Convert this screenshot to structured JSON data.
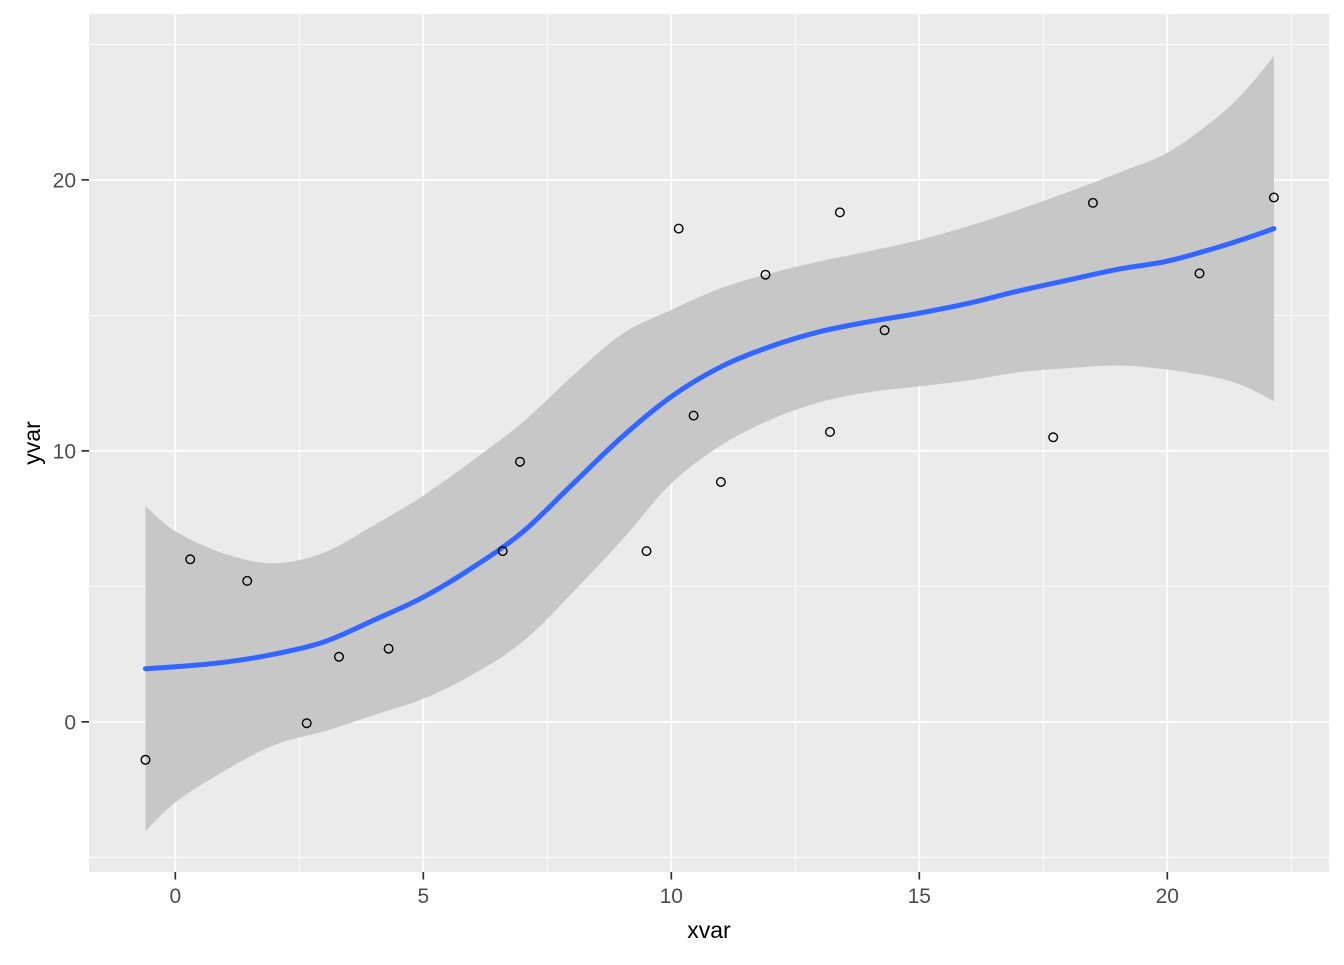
{
  "chart_data": {
    "type": "scatter",
    "title": "",
    "xlabel": "xvar",
    "ylabel": "yvar",
    "xlim": [
      -1.74,
      23.26
    ],
    "ylim": [
      -5.54,
      26.12
    ],
    "x_ticks": [
      0,
      5,
      10,
      15,
      20
    ],
    "y_ticks": [
      0,
      10,
      20
    ],
    "x_minor_ticks": [
      2.5,
      7.5,
      12.5,
      17.5,
      22.5
    ],
    "y_minor_ticks": [
      -5,
      5,
      15,
      25
    ],
    "grid": "white major and minor gridlines on gray panel",
    "legend": "none",
    "points": [
      [
        -0.6,
        -1.4
      ],
      [
        0.3,
        6.0
      ],
      [
        1.45,
        5.2
      ],
      [
        2.65,
        -0.05
      ],
      [
        3.3,
        2.4
      ],
      [
        4.3,
        2.7
      ],
      [
        6.6,
        6.3
      ],
      [
        6.95,
        9.6
      ],
      [
        9.5,
        6.3
      ],
      [
        10.15,
        18.2
      ],
      [
        10.45,
        11.3
      ],
      [
        11.0,
        8.85
      ],
      [
        11.9,
        16.5
      ],
      [
        13.2,
        10.7
      ],
      [
        13.4,
        18.8
      ],
      [
        14.3,
        14.45
      ],
      [
        17.7,
        10.5
      ],
      [
        18.5,
        19.15
      ],
      [
        20.65,
        16.55
      ],
      [
        22.15,
        19.35
      ]
    ],
    "smooth": {
      "method": "loess",
      "x": [
        -0.6,
        0,
        1,
        2,
        3,
        4,
        5,
        6,
        7,
        8,
        9,
        10,
        11,
        12,
        13,
        14,
        15,
        16,
        17,
        18,
        19,
        20,
        21,
        21.6,
        22.15
      ],
      "fit": [
        1.96,
        2.03,
        2.2,
        2.5,
        2.95,
        3.75,
        4.6,
        5.7,
        7.0,
        8.75,
        10.5,
        12.0,
        13.1,
        13.85,
        14.4,
        14.77,
        15.08,
        15.45,
        15.9,
        16.3,
        16.7,
        17.0,
        17.5,
        17.85,
        18.2
      ],
      "se_halfwidth": [
        6.0,
        5.0,
        4.0,
        3.35,
        3.3,
        3.5,
        3.75,
        3.95,
        4.05,
        4.0,
        3.8,
        3.2,
        2.9,
        2.7,
        2.6,
        2.6,
        2.7,
        2.85,
        3.0,
        3.25,
        3.55,
        4.0,
        4.8,
        5.5,
        6.37
      ]
    },
    "colors": {
      "panel_background": "#EBEBEB",
      "gridline": "#FFFFFF",
      "smooth_line": "#3366FF",
      "confidence_band": "#C7C7C7",
      "point_stroke": "#000000",
      "tick_label": "#4D4D4D",
      "axis_title": "#000000",
      "tick_mark": "#333333"
    }
  }
}
